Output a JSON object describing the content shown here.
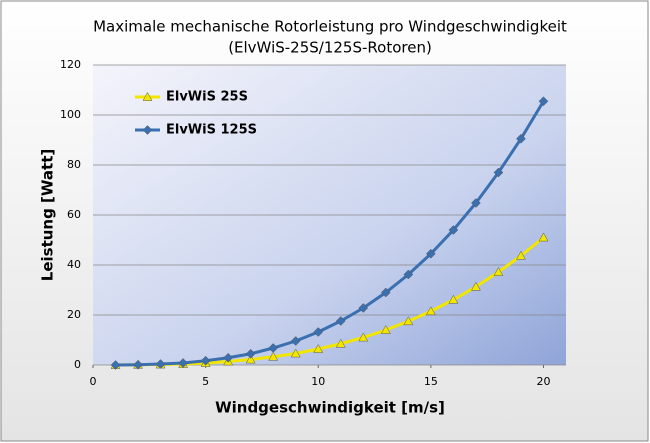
{
  "chart_data": {
    "type": "line",
    "title": "Maximale mechanische Rotorleistung pro Windgeschwindigkeit",
    "subtitle": "(ElvWiS-25S/125S-Rotoren)",
    "x_label": "Windgeschwindigkeit [m/s]",
    "y_label": "Leistung  [Watt]",
    "x": [
      1,
      2,
      3,
      4,
      5,
      6,
      7,
      8,
      9,
      10,
      11,
      12,
      13,
      14,
      15,
      16,
      17,
      18,
      19,
      20
    ],
    "series": [
      {
        "name": "ElvWiS 25S",
        "color": "#f2e600",
        "marker": "triangle",
        "values": [
          0.0,
          0.1,
          0.2,
          0.4,
          0.8,
          1.4,
          2.2,
          3.3,
          4.6,
          6.4,
          8.5,
          11,
          14,
          17.5,
          21.5,
          26.1,
          31.3,
          37.2,
          43.7,
          51
        ]
      },
      {
        "name": "ElvWiS 125S",
        "color": "#3a6fb0",
        "marker": "diamond",
        "values": [
          0.0,
          0.1,
          0.4,
          0.8,
          1.7,
          2.9,
          4.5,
          6.8,
          9.6,
          13.2,
          17.6,
          22.8,
          29,
          36.2,
          44.5,
          54,
          64.8,
          77,
          90.5,
          105.5
        ]
      }
    ],
    "xlim": [
      0,
      21
    ],
    "xticks": [
      0,
      5,
      10,
      15,
      20
    ],
    "ylim": [
      0,
      120
    ],
    "yticks": [
      0,
      20,
      40,
      60,
      80,
      100,
      120
    ],
    "grid": true,
    "legend": "upper left"
  }
}
